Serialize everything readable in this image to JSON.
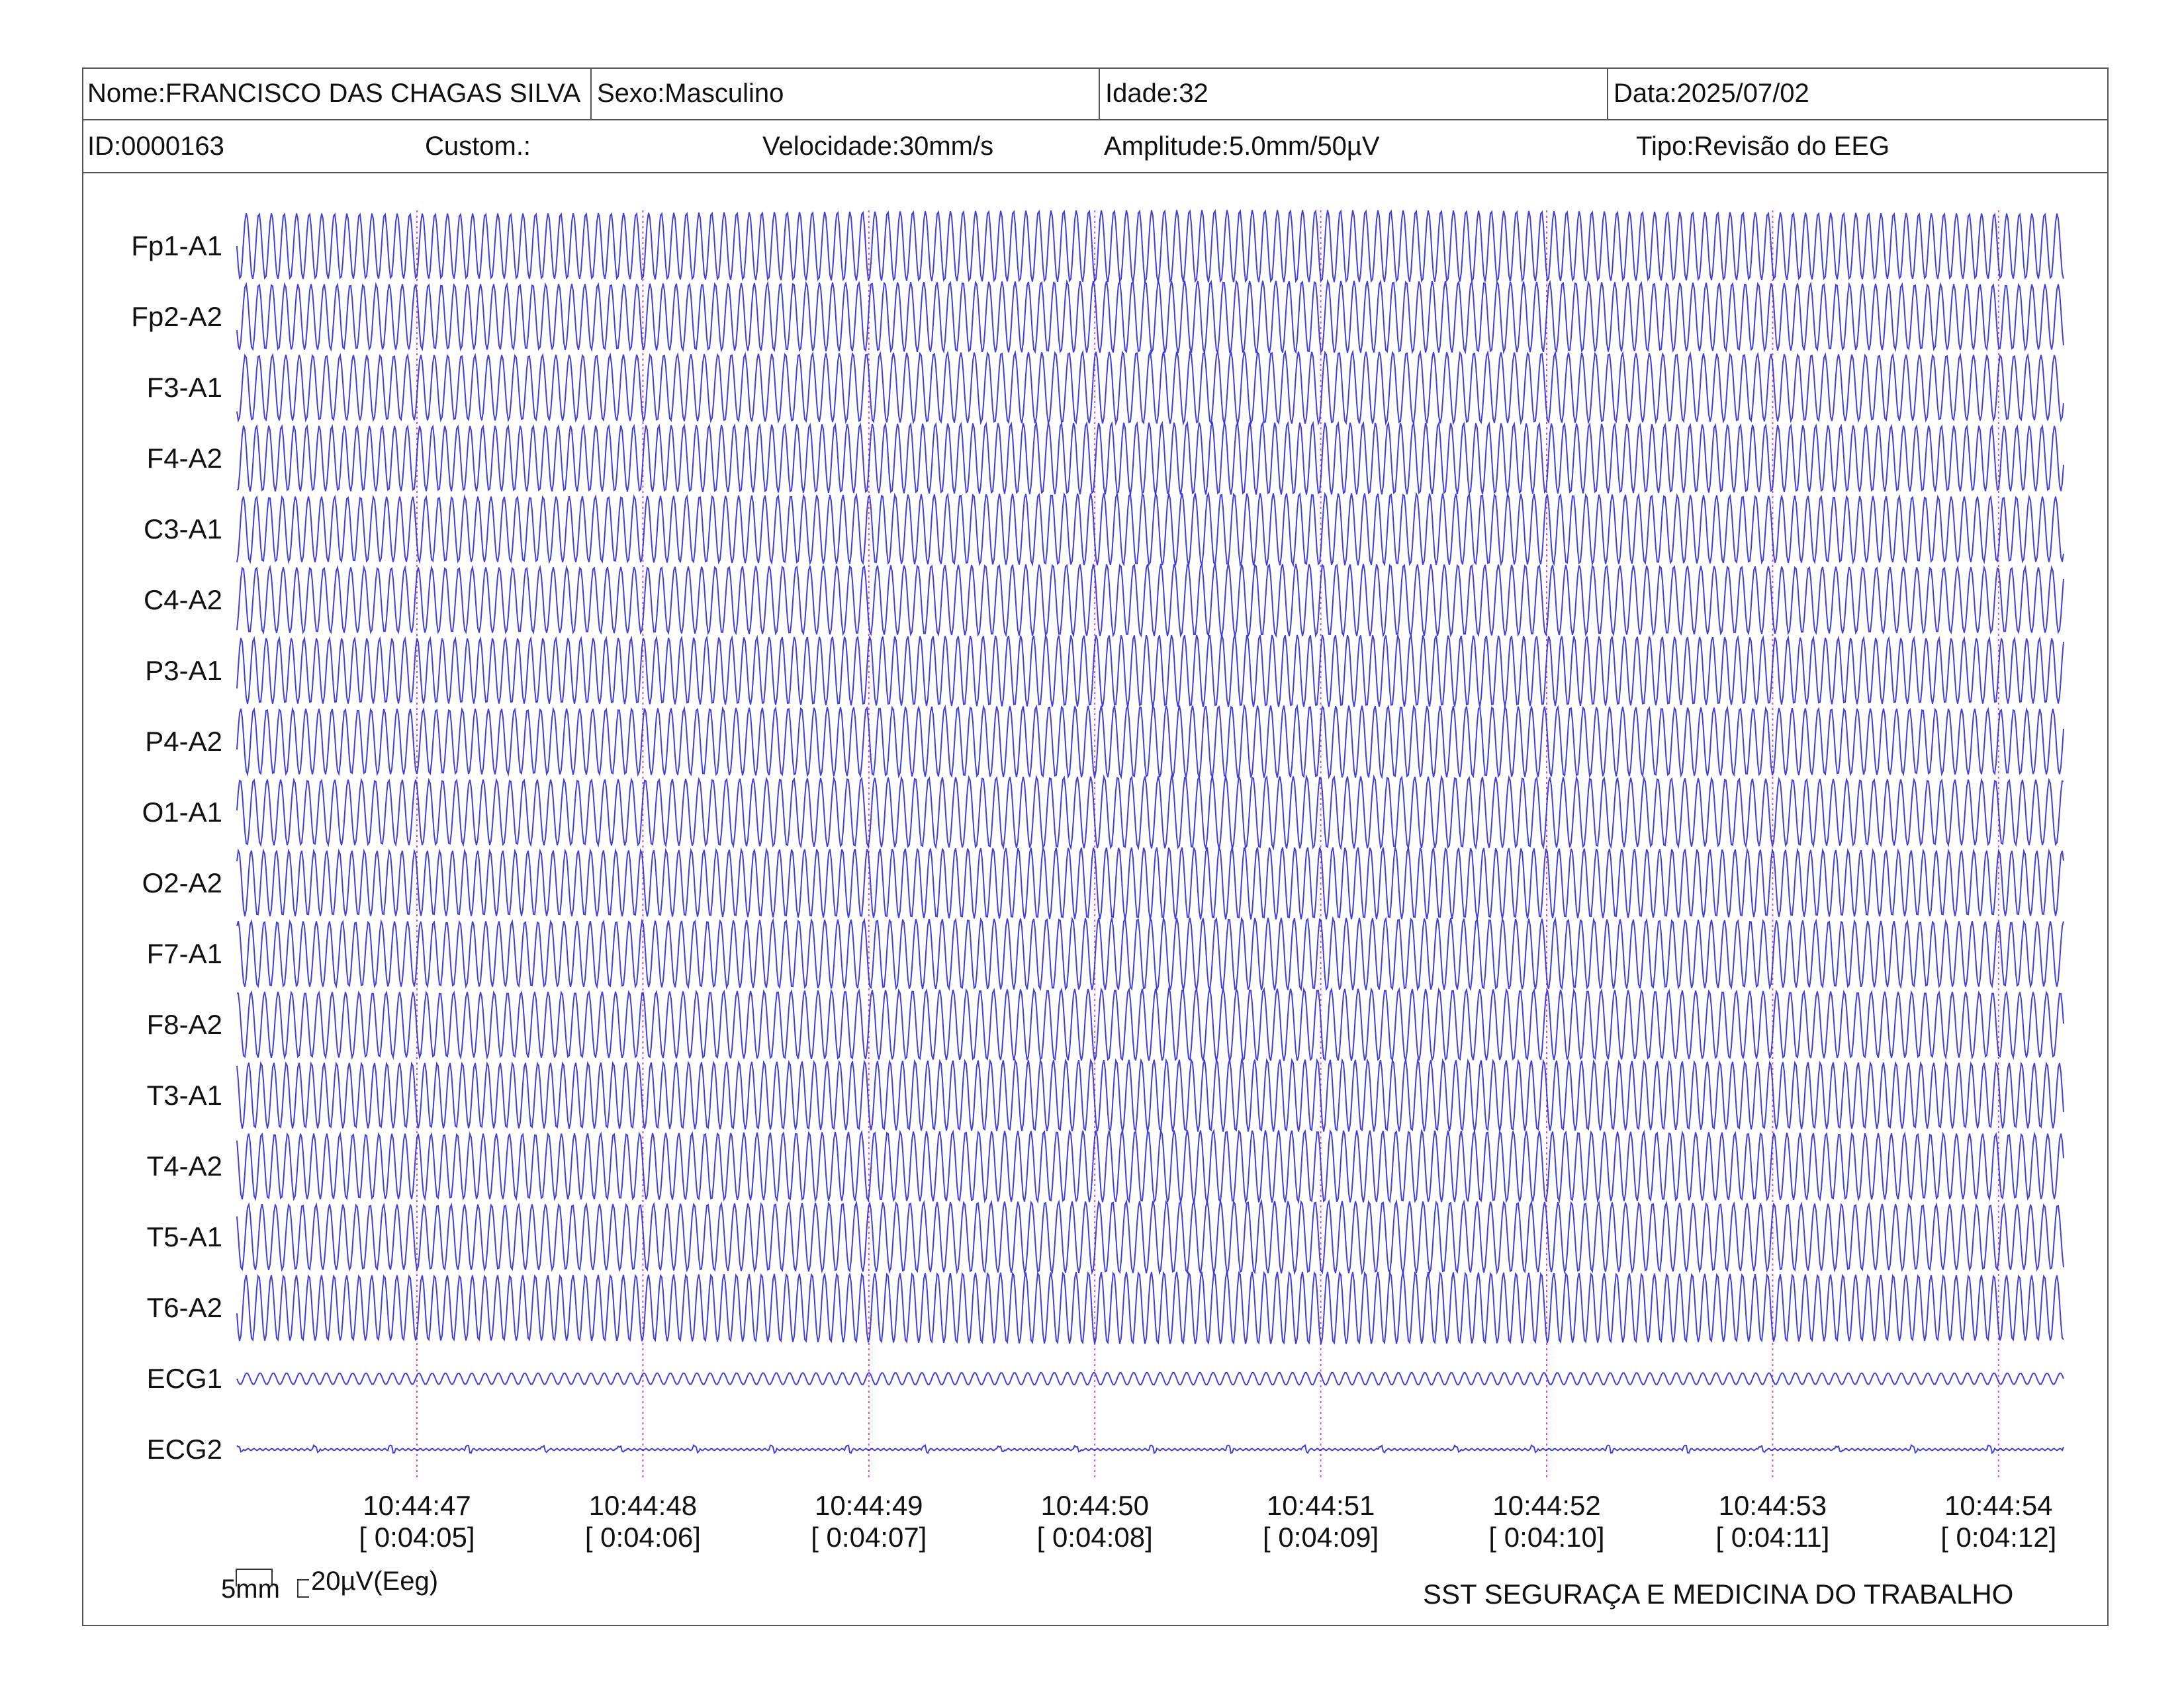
{
  "header": {
    "name": "Nome:FRANCISCO DAS CHAGAS SILVA",
    "sex": "Sexo:Masculino",
    "age": "Idade:32",
    "date": "Data:2025/07/02",
    "id": "ID:0000163",
    "custom": "Custom.:",
    "speed": "Velocidade:30mm/s",
    "amplitude": "Amplitude:5.0mm/50µV",
    "type": "Tipo:Revisão do EEG"
  },
  "channels": [
    "Fp1-A1",
    "Fp2-A2",
    "F3-A1",
    "F4-A2",
    "C3-A1",
    "C4-A2",
    "P3-A1",
    "P4-A2",
    "O1-A1",
    "O2-A2",
    "F7-A1",
    "F8-A2",
    "T3-A1",
    "T4-A2",
    "T5-A1",
    "T6-A2",
    "ECG1",
    "ECG2"
  ],
  "time_markers": [
    {
      "clock": "10:44:47",
      "elapsed": "[ 0:04:05]"
    },
    {
      "clock": "10:44:48",
      "elapsed": "[ 0:04:06]"
    },
    {
      "clock": "10:44:49",
      "elapsed": "[ 0:04:07]"
    },
    {
      "clock": "10:44:50",
      "elapsed": "[ 0:04:08]"
    },
    {
      "clock": "10:44:51",
      "elapsed": "[ 0:04:09]"
    },
    {
      "clock": "10:44:52",
      "elapsed": "[ 0:04:10]"
    },
    {
      "clock": "10:44:53",
      "elapsed": "[ 0:04:11]"
    },
    {
      "clock": "10:44:54",
      "elapsed": "[ 0:04:12]"
    }
  ],
  "scale": {
    "time_label": "5mm",
    "amplitude_label": "20µV(Eeg)"
  },
  "footer": {
    "organization": "SST SEGURAÇA E MEDICINA DO TRABALHO"
  },
  "colors": {
    "trace": "#2b2bd6",
    "marker": "#e040e0",
    "border": "#555555"
  }
}
